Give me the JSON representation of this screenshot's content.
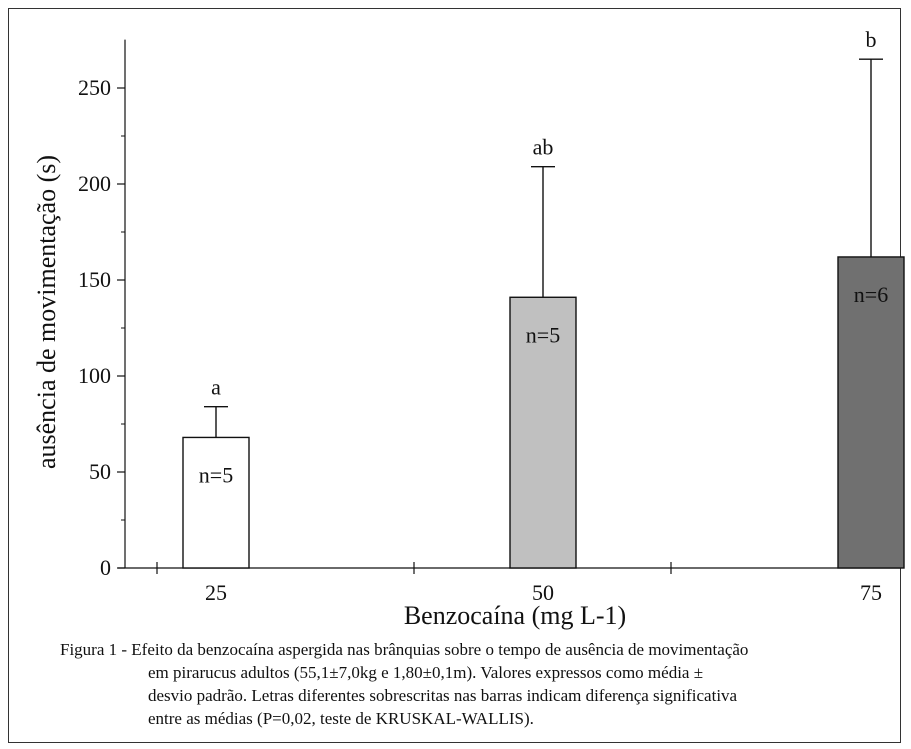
{
  "chart_data": {
    "type": "bar",
    "categories": [
      "25",
      "50",
      "75"
    ],
    "values": [
      68,
      141,
      162
    ],
    "error_upper": [
      84,
      209,
      265
    ],
    "bar_colors": [
      "#ffffff",
      "#c0c0c0",
      "#707070"
    ],
    "sample_labels": [
      "n=5",
      "n=5",
      "n=6"
    ],
    "significance_letters": [
      "a",
      "ab",
      "b"
    ],
    "xlabel": "Benzocaína (mg L-1)",
    "ylabel": "ausência de movimentação (s)",
    "ylim": [
      0,
      270
    ],
    "yticks": [
      "0",
      "50",
      "100",
      "150",
      "200",
      "250"
    ],
    "grid": false
  },
  "caption": {
    "line1": "Figura 1 - Efeito da benzocaína aspergida nas brânquias sobre o tempo de ausência de movimentação",
    "line2": "em pirarucus adultos (55,1±7,0kg e 1,80±0,1m). Valores expressos como média ±",
    "line3": "desvio padrão. Letras diferentes sobrescritas nas barras indicam diferença significativa",
    "line4": "entre as médias (P=0,02, teste de KRUSKAL-WALLIS)."
  }
}
